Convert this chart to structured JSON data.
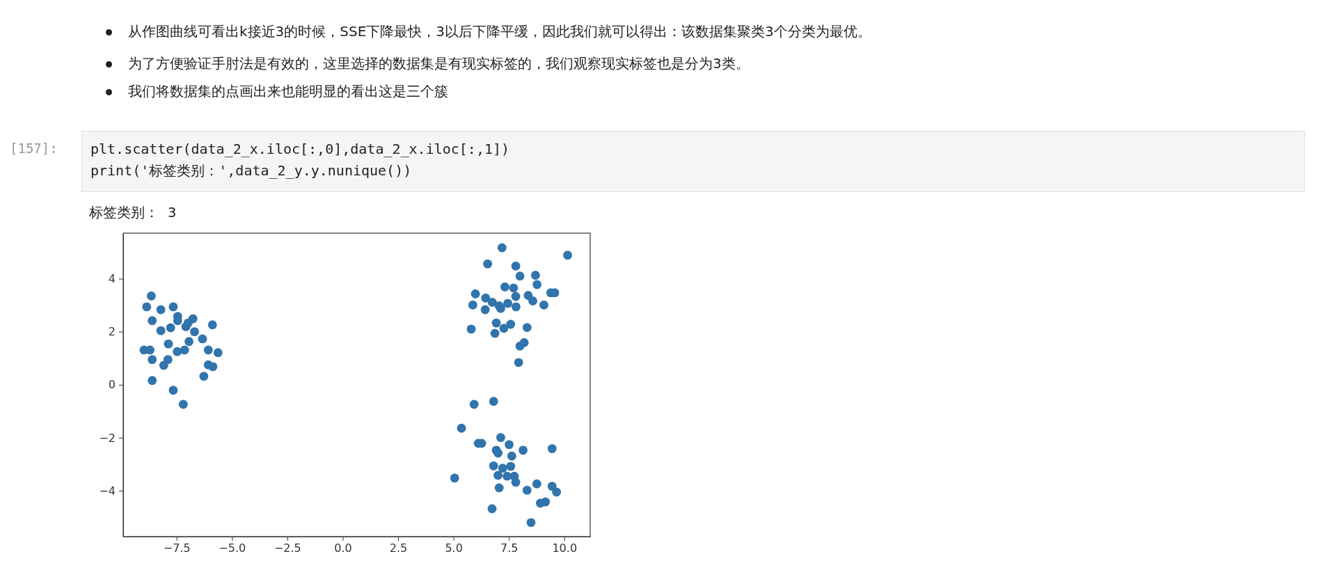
{
  "chart_data": {
    "type": "scatter",
    "annotations": [
      "从作图曲线可看出k接近3的时候，SSE下降最快，3以后下降平缓，因此我们就可以得出：该数据集聚类3个分类为最优。",
      "为了方便验证手肘法是有效的，这里选择的数据集是有现实标签的，我们观察现实标签也是分为3类。",
      "我们将数据集的点画出来也能明显的看出这是三个簇",
      "[157]:",
      "plt.scatter(data_2_x.iloc[:,0],data_2_x.iloc[:,1])",
      "print('标签类别：',data_2_y.y.nunique())",
      "标签类别：  3"
    ],
    "xlim": [
      -9.91,
      11.17
    ],
    "ylim": [
      -5.73,
      5.72
    ],
    "xticks": [
      {
        "value": -7.5,
        "label": "−7.5"
      },
      {
        "value": -5,
        "label": "−5.0"
      },
      {
        "value": -2.5,
        "label": "−2.5"
      },
      {
        "value": 0,
        "label": "0.0"
      },
      {
        "value": 2.5,
        "label": "2.5"
      },
      {
        "value": 5,
        "label": "5.0"
      },
      {
        "value": 7.5,
        "label": "7.5"
      },
      {
        "value": 10,
        "label": "10.0"
      }
    ],
    "yticks": [
      {
        "value": -4,
        "label": "−4"
      },
      {
        "value": -2,
        "label": "−2"
      },
      0,
      2,
      4
    ],
    "marker": "circle",
    "series": [
      {
        "color": "#3274ac",
        "x": [
          -8.64,
          -8.85,
          -8.21,
          -7.65,
          -7.45,
          -7.45,
          -8.6,
          -8.21,
          -7.77,
          -7.08,
          -6.98,
          -6.76,
          -6.69,
          -5.88,
          -6.33,
          -6.94,
          -7.87,
          -8.97,
          -8.7,
          -7.47,
          -7.14,
          -6.07,
          -5.63,
          -8.6,
          -7.89,
          -8.08,
          -6.07,
          -5.86,
          -6.27,
          -8.6,
          -7.65,
          -7.2,
          7.19,
          10.15,
          6.54,
          7.81,
          8.0,
          8.7,
          8.77,
          7.32,
          7.71,
          5.99,
          7.81,
          8.37,
          9.39,
          9.57,
          6.45,
          8.58,
          5.87,
          6.75,
          7.06,
          7.45,
          7.82,
          9.08,
          6.43,
          7.13,
          6.93,
          7.58,
          7.27,
          8.32,
          5.8,
          6.87,
          8.19,
          8.0,
          7.94,
          5.93,
          6.81,
          5.36,
          6.12,
          6.27,
          7.13,
          7.51,
          8.14,
          9.45,
          6.93,
          7.01,
          7.63,
          6.81,
          7.22,
          7.58,
          7.01,
          7.42,
          7.74,
          7.81,
          5.05,
          7.06,
          8.32,
          8.76,
          9.45,
          9.65,
          8.92,
          9.15,
          6.74,
          8.5
        ],
        "values": [
          3.35,
          2.94,
          2.83,
          2.94,
          2.58,
          2.42,
          2.42,
          2.04,
          2.15,
          2.19,
          2.33,
          2.49,
          2.0,
          2.26,
          1.73,
          1.63,
          1.54,
          1.31,
          1.31,
          1.25,
          1.31,
          1.31,
          1.21,
          0.95,
          0.95,
          0.73,
          0.75,
          0.68,
          0.32,
          0.16,
          -0.21,
          -0.74,
          5.17,
          4.89,
          4.56,
          4.48,
          4.1,
          4.13,
          3.78,
          3.69,
          3.65,
          3.43,
          3.33,
          3.37,
          3.47,
          3.47,
          3.27,
          3.16,
          3.01,
          3.11,
          2.98,
          3.07,
          2.94,
          3.01,
          2.83,
          2.88,
          2.33,
          2.28,
          2.13,
          2.16,
          2.1,
          1.94,
          1.59,
          1.46,
          0.84,
          -0.74,
          -0.63,
          -1.64,
          -2.21,
          -2.21,
          -1.99,
          -2.26,
          -2.47,
          -2.41,
          -2.47,
          -2.58,
          -2.69,
          -3.06,
          -3.15,
          -3.08,
          -3.42,
          -3.45,
          -3.45,
          -3.68,
          -3.52,
          -3.89,
          -3.98,
          -3.74,
          -3.83,
          -4.05,
          -4.47,
          -4.42,
          -4.68,
          -5.2
        ]
      }
    ]
  }
}
